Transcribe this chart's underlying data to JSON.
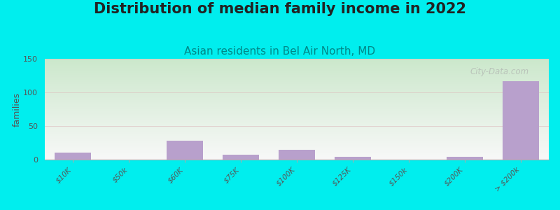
{
  "title": "Distribution of median family income in 2022",
  "subtitle": "Asian residents in Bel Air North, MD",
  "ylabel": "families",
  "background_color": "#00EEEE",
  "plot_bg_color_topleft": "#ddeedd",
  "plot_bg_color_bottomright": "#f8f8f8",
  "bar_color": "#b8a0cc",
  "tick_labels": [
    "$10K",
    "$50k",
    "$60K",
    "$75K",
    "$100K",
    "$125K",
    "$150k",
    "$200K",
    "> $200k"
  ],
  "values": [
    10,
    0,
    28,
    7,
    15,
    4,
    0,
    4,
    117
  ],
  "ylim": [
    0,
    150
  ],
  "yticks": [
    0,
    50,
    100,
    150
  ],
  "title_fontsize": 15,
  "subtitle_fontsize": 11,
  "ylabel_fontsize": 9,
  "watermark": "City-Data.com",
  "title_color": "#222222",
  "subtitle_color": "#008888",
  "tick_color": "#555555",
  "ylabel_color": "#555555",
  "grid_color": "#ddbbbb",
  "spine_color": "#aaaaaa"
}
